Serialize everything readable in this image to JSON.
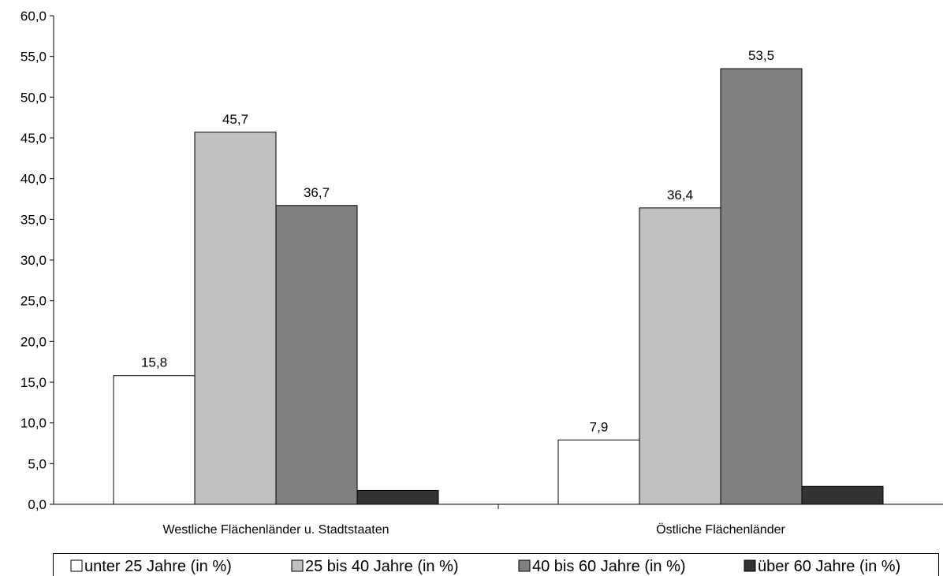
{
  "chart_data": {
    "type": "bar",
    "categories": [
      "Westliche Flächenländer u. Stadtstaaten",
      "Östliche Flächenländer"
    ],
    "series": [
      {
        "name": "unter 25 Jahre (in %)",
        "values": [
          15.8,
          7.9
        ],
        "color": "#ffffff"
      },
      {
        "name": "25 bis 40 Jahre (in %)",
        "values": [
          45.7,
          36.4
        ],
        "color": "#c0c0c0"
      },
      {
        "name": "40 bis 60 Jahre (in %)",
        "values": [
          36.7,
          53.5
        ],
        "color": "#808080"
      },
      {
        "name": "über 60 Jahre (in %)",
        "values": [
          1.7,
          2.2
        ],
        "color": "#333333"
      }
    ],
    "data_labels": [
      [
        "15,8",
        "7,9"
      ],
      [
        "45,7",
        "36,4"
      ],
      [
        "36,7",
        "53,5"
      ],
      [
        "",
        ""
      ]
    ],
    "y_ticks": [
      "0,0",
      "5,0",
      "10,0",
      "15,0",
      "20,0",
      "25,0",
      "30,0",
      "35,0",
      "40,0",
      "45,0",
      "50,0",
      "55,0",
      "60,0"
    ],
    "ylim": [
      0,
      60
    ],
    "grid": false,
    "legend_position": "bottom"
  }
}
